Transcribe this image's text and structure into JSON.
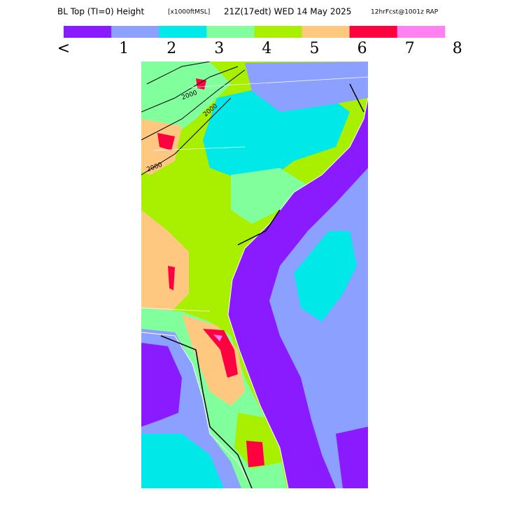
{
  "header": {
    "parts": [
      "BL Top (TI=0) Height",
      "[x1000ftMSL]",
      "21Z(17edt) WED 14 May 2025",
      "12hrFcst@1001z RAP"
    ]
  },
  "colorbar": {
    "colors": [
      "#8a1aff",
      "#8ca0ff",
      "#00e8e8",
      "#80ff9c",
      "#a8f000",
      "#ffc880",
      "#ff0040",
      "#ff80f0"
    ],
    "labels": [
      "<",
      "1",
      "2",
      "3",
      "4",
      "5",
      "6",
      "7",
      "8"
    ]
  },
  "map": {
    "contour_labels": [
      "2000",
      "2000",
      "2000"
    ]
  }
}
